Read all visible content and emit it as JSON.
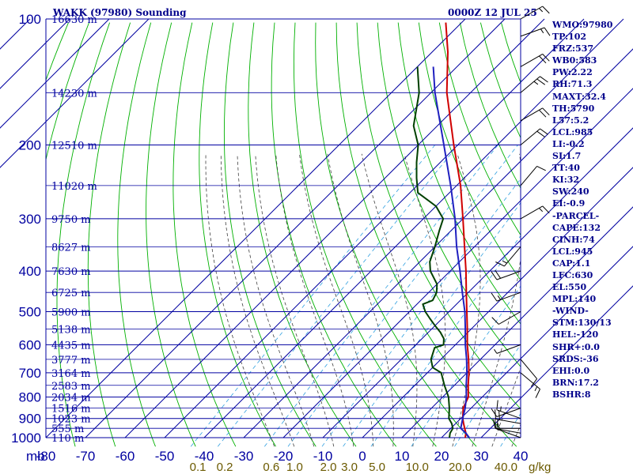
{
  "header": {
    "title": "WAKK (97980) Sounding",
    "time": "0000Z 12 JUL 25"
  },
  "indices": [
    "WMO:97980",
    "TP:102",
    "FRZ:537",
    "WB0:583",
    "PW:2.22",
    "RH:71.3",
    "MAXT:32.4",
    "TH:5790",
    "L57:5.2",
    "LCL:985",
    "LI:-0.2",
    "SI:1.7",
    "TT:40",
    "KI:32",
    "SW:240",
    "EI:-0.9",
    "-PARCEL-",
    "CAPE:132",
    "CINH:74",
    "LCL:945",
    "CAP:1.1",
    "LFC:630",
    "EL:550",
    "MPL:140",
    "-WIND-",
    "STM:130/13",
    "HEL:-120",
    "SHR+:0.0",
    "SRDS:-36",
    "EHI:0.0",
    "BRN:17.2",
    "BSHR:8"
  ],
  "colors": {
    "grid": "#0000a0",
    "dry_adiabat": "#00b000",
    "moist_adiabat": "#404040",
    "mixing_ratio": "#30a0e0",
    "temperature": "#d00000",
    "dewpoint": "#004000",
    "parcel": "#2020c0",
    "mixing_label": "#6b5a00",
    "wind_barb": "#000000"
  },
  "chart_data": {
    "type": "line",
    "title": "WAKK (97980) Sounding",
    "subtitle": "0000Z 12 JUL 25",
    "ylabel": "mb",
    "xlabel": "",
    "log_scale_y": true,
    "ylim": [
      1000,
      100
    ],
    "xlim": [
      -80,
      40
    ],
    "grid": true,
    "pressure_ticks": [
      100,
      200,
      300,
      400,
      500,
      600,
      700,
      800,
      900,
      1000
    ],
    "pressure_tick_labels": [
      "100",
      "200",
      "300",
      "400",
      "500",
      "600",
      "700",
      "800",
      "900",
      "1000"
    ],
    "temperature_ticks": [
      -80,
      -70,
      -60,
      -50,
      -40,
      -30,
      -20,
      -10,
      0,
      10,
      20,
      30,
      40
    ],
    "temperature_tick_labels": [
      "-80",
      "-70",
      "-60",
      "-50",
      "-40",
      "-30",
      "-20",
      "-10",
      "0",
      "10",
      "20",
      "30",
      "40"
    ],
    "y_axis_unit": "mb",
    "height_labels": [
      {
        "p": 100,
        "text": "16630 m"
      },
      {
        "p": 150,
        "text": "14230 m"
      },
      {
        "p": 200,
        "text": "12510 m"
      },
      {
        "p": 250,
        "text": "11020 m"
      },
      {
        "p": 300,
        "text": "9750 m"
      },
      {
        "p": 350,
        "text": "8627 m"
      },
      {
        "p": 400,
        "text": "7630 m"
      },
      {
        "p": 450,
        "text": "6725 m"
      },
      {
        "p": 500,
        "text": "5900 m"
      },
      {
        "p": 550,
        "text": "5138 m"
      },
      {
        "p": 600,
        "text": "4435 m"
      },
      {
        "p": 650,
        "text": "3777 m"
      },
      {
        "p": 700,
        "text": "3164 m"
      },
      {
        "p": 750,
        "text": "2583 m"
      },
      {
        "p": 800,
        "text": "2034 m"
      },
      {
        "p": 850,
        "text": "1516 m"
      },
      {
        "p": 900,
        "text": "1023 m"
      },
      {
        "p": 950,
        "text": "555 m"
      },
      {
        "p": 1000,
        "text": "110 m"
      }
    ],
    "mixing_ratio_lines": [
      {
        "value": 0.1,
        "label": "0.1"
      },
      {
        "value": 0.2,
        "label": "0.2"
      },
      {
        "value": 0.6,
        "label": "0.6"
      },
      {
        "value": 1.0,
        "label": "1.0"
      },
      {
        "value": 2.0,
        "label": "2.0"
      },
      {
        "value": 3.0,
        "label": "3.0"
      },
      {
        "value": 5.0,
        "label": "5.0"
      },
      {
        "value": 10.0,
        "label": "10.0"
      },
      {
        "value": 20.0,
        "label": "20.0"
      },
      {
        "value": 40.0,
        "label": "40.0"
      }
    ],
    "mixing_ratio_unit": "g/kg",
    "series": [
      {
        "key": "temperature",
        "values": [
          {
            "p": 1000,
            "t": 26.0
          },
          {
            "p": 975,
            "t": 25.0
          },
          {
            "p": 950,
            "t": 23.5
          },
          {
            "p": 925,
            "t": 22.0
          },
          {
            "p": 900,
            "t": 20.5
          },
          {
            "p": 850,
            "t": 18.0
          },
          {
            "p": 800,
            "t": 16.5
          },
          {
            "p": 750,
            "t": 13.5
          },
          {
            "p": 700,
            "t": 10.5
          },
          {
            "p": 650,
            "t": 7.0
          },
          {
            "p": 600,
            "t": 3.0
          },
          {
            "p": 550,
            "t": -1.0
          },
          {
            "p": 500,
            "t": -5.5
          },
          {
            "p": 450,
            "t": -10.5
          },
          {
            "p": 400,
            "t": -16.0
          },
          {
            "p": 350,
            "t": -22.5
          },
          {
            "p": 300,
            "t": -30.0
          },
          {
            "p": 250,
            "t": -39.0
          },
          {
            "p": 200,
            "t": -51.0
          },
          {
            "p": 150,
            "t": -66.0
          },
          {
            "p": 120,
            "t": -76.0
          },
          {
            "p": 102,
            "t": -84.0
          }
        ]
      },
      {
        "key": "dewpoint",
        "values": [
          {
            "p": 1000,
            "t": 22.0
          },
          {
            "p": 975,
            "t": 21.0
          },
          {
            "p": 950,
            "t": 20.5
          },
          {
            "p": 925,
            "t": 19.0
          },
          {
            "p": 900,
            "t": 17.0
          },
          {
            "p": 850,
            "t": 14.5
          },
          {
            "p": 800,
            "t": 11.5
          },
          {
            "p": 750,
            "t": 7.5
          },
          {
            "p": 700,
            "t": 3.5
          },
          {
            "p": 680,
            "t": 0.0
          },
          {
            "p": 650,
            "t": -2.5
          },
          {
            "p": 610,
            "t": -4.5
          },
          {
            "p": 600,
            "t": -3.0
          },
          {
            "p": 580,
            "t": -4.5
          },
          {
            "p": 560,
            "t": -7.0
          },
          {
            "p": 540,
            "t": -10.0
          },
          {
            "p": 520,
            "t": -13.0
          },
          {
            "p": 500,
            "t": -16.0
          },
          {
            "p": 480,
            "t": -18.5
          },
          {
            "p": 470,
            "t": -17.0
          },
          {
            "p": 450,
            "t": -18.0
          },
          {
            "p": 430,
            "t": -20.0
          },
          {
            "p": 400,
            "t": -25.0
          },
          {
            "p": 380,
            "t": -27.5
          },
          {
            "p": 350,
            "t": -30.0
          },
          {
            "p": 320,
            "t": -33.0
          },
          {
            "p": 300,
            "t": -35.0
          },
          {
            "p": 280,
            "t": -40.0
          },
          {
            "p": 260,
            "t": -48.0
          },
          {
            "p": 240,
            "t": -52.0
          },
          {
            "p": 220,
            "t": -56.0
          },
          {
            "p": 200,
            "t": -60.0
          },
          {
            "p": 180,
            "t": -66.0
          },
          {
            "p": 150,
            "t": -73.0
          },
          {
            "p": 130,
            "t": -80.0
          }
        ]
      },
      {
        "key": "parcel",
        "values": [
          {
            "p": 1000,
            "t": 27.0
          },
          {
            "p": 975,
            "t": 25.0
          },
          {
            "p": 950,
            "t": 22.5
          },
          {
            "p": 900,
            "t": 20.5
          },
          {
            "p": 850,
            "t": 18.5
          },
          {
            "p": 800,
            "t": 16.0
          },
          {
            "p": 750,
            "t": 13.0
          },
          {
            "p": 700,
            "t": 10.0
          },
          {
            "p": 650,
            "t": 6.5
          },
          {
            "p": 600,
            "t": 2.5
          },
          {
            "p": 550,
            "t": -1.5
          },
          {
            "p": 500,
            "t": -6.0
          },
          {
            "p": 450,
            "t": -11.5
          },
          {
            "p": 400,
            "t": -17.5
          },
          {
            "p": 350,
            "t": -24.5
          },
          {
            "p": 300,
            "t": -32.0
          },
          {
            "p": 250,
            "t": -41.5
          },
          {
            "p": 200,
            "t": -53.5
          },
          {
            "p": 150,
            "t": -69.0
          },
          {
            "p": 130,
            "t": -76.0
          }
        ]
      }
    ],
    "wind_barbs": [
      {
        "p": 1000,
        "dir": 290,
        "spd": 10
      },
      {
        "p": 975,
        "dir": 280,
        "spd": 10
      },
      {
        "p": 950,
        "dir": 270,
        "spd": 15
      },
      {
        "p": 925,
        "dir": 280,
        "spd": 20
      },
      {
        "p": 900,
        "dir": 290,
        "spd": 15
      },
      {
        "p": 850,
        "dir": 250,
        "spd": 10
      },
      {
        "p": 700,
        "dir": 130,
        "spd": 15
      },
      {
        "p": 650,
        "dir": 140,
        "spd": 10
      },
      {
        "p": 600,
        "dir": 250,
        "spd": 5
      },
      {
        "p": 500,
        "dir": 240,
        "spd": 10
      },
      {
        "p": 450,
        "dir": 250,
        "spd": 15
      },
      {
        "p": 400,
        "dir": 250,
        "spd": 20
      },
      {
        "p": 350,
        "dir": 220,
        "spd": 15
      },
      {
        "p": 300,
        "dir": 60,
        "spd": 15
      },
      {
        "p": 250,
        "dir": 40,
        "spd": 10
      },
      {
        "p": 200,
        "dir": 50,
        "spd": 20
      },
      {
        "p": 175,
        "dir": 60,
        "spd": 20
      },
      {
        "p": 150,
        "dir": 50,
        "spd": 25
      },
      {
        "p": 130,
        "dir": 60,
        "spd": 20
      },
      {
        "p": 110,
        "dir": 70,
        "spd": 15
      },
      {
        "p": 100,
        "dir": 60,
        "spd": 15
      }
    ]
  }
}
